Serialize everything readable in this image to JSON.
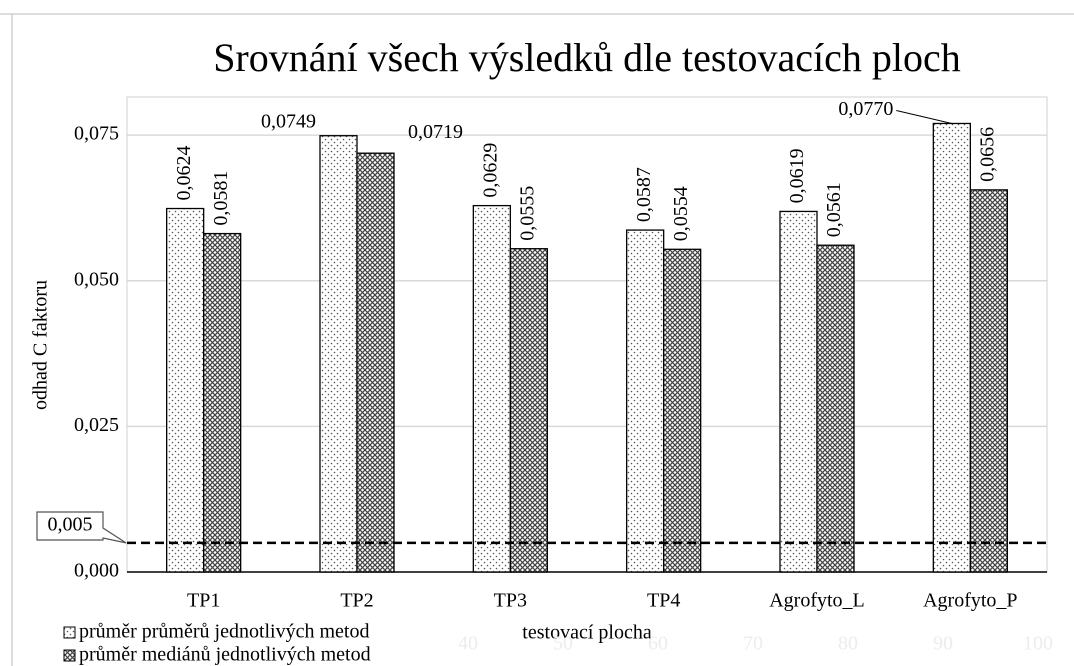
{
  "chart_data": {
    "type": "bar",
    "title": "Srovnání všech výsledků dle testovacích ploch",
    "x_label": "testovací plocha",
    "y_label": "odhad C faktoru",
    "categories": [
      "TP1",
      "TP2",
      "TP3",
      "TP4",
      "Agrofyto_L",
      "Agrofyto_P"
    ],
    "series": [
      {
        "name": "průměr průměrů jednotlivých metod",
        "color": "#ffffff",
        "pattern": "dots",
        "values": [
          0.0624,
          0.0749,
          0.0629,
          0.0587,
          0.0619,
          0.077
        ],
        "value_labels": [
          "0,0624",
          "0,0749",
          "0,0629",
          "0,0587",
          "0,0619",
          "0,0770"
        ]
      },
      {
        "name": "průměr mediánů jednotlivých metod",
        "color": "#ffffff",
        "pattern": "crosshatch",
        "values": [
          0.0581,
          0.0719,
          0.0555,
          0.0554,
          0.0561,
          0.0656
        ],
        "value_labels": [
          "0,0581",
          "0,0719",
          "0,0555",
          "0,0554",
          "0,0561",
          "0,0656"
        ]
      }
    ],
    "ylim": [
      0,
      0.08
    ],
    "yticks": [
      {
        "value": 0,
        "label": "0,000"
      },
      {
        "value": 0.025,
        "label": "0,025"
      },
      {
        "value": 0.05,
        "label": "0,050"
      },
      {
        "value": 0.075,
        "label": "0,075"
      }
    ],
    "grid": true,
    "reference_line": {
      "value": 0.005,
      "label": "0,005"
    },
    "legend": "bottom-left",
    "background_labels": [
      "40",
      "50",
      "60",
      "70",
      "80",
      "90",
      "100"
    ]
  }
}
